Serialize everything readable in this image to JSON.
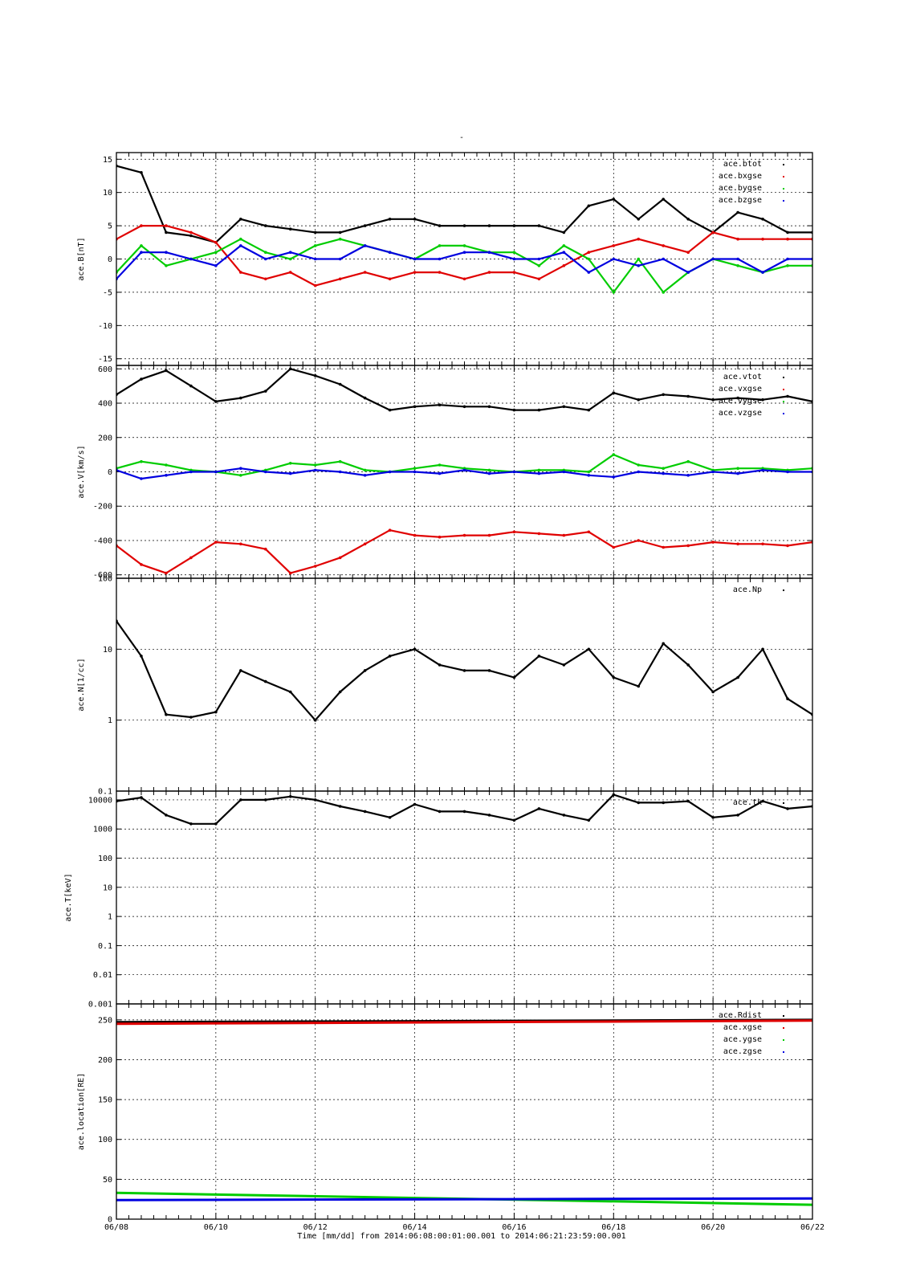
{
  "top_mark": "-",
  "xaxis": {
    "label": "Time [mm/dd]  from 2014:06:08:00:01:00.001  to  2014:06:21:23:59:00.001",
    "ticks": [
      "06/08",
      "06/10",
      "06/12",
      "06/14",
      "06/16",
      "06/18",
      "06/20",
      "06/22"
    ]
  },
  "colors": {
    "black": "#000000",
    "red": "#e00000",
    "green": "#00cc00",
    "blue": "#0000e0"
  },
  "chart_data": [
    {
      "type": "scatter",
      "ylabel": "ace.B[nT]",
      "ylim": [
        -16,
        16
      ],
      "yscale": "linear",
      "yticks": [
        15,
        10,
        5,
        0,
        -5,
        -10,
        -15
      ],
      "ytick_labels": [
        "15",
        "10",
        "5",
        "0",
        "-5",
        "-10",
        "-15"
      ],
      "xlim": [
        "06/08",
        "06/22"
      ],
      "grid": true,
      "legend_position": "top-right",
      "x": [
        "06/08",
        "06/08.5",
        "06/09",
        "06/09.5",
        "06/10",
        "06/10.5",
        "06/11",
        "06/11.5",
        "06/12",
        "06/12.5",
        "06/13",
        "06/13.5",
        "06/14",
        "06/14.5",
        "06/15",
        "06/15.5",
        "06/16",
        "06/16.5",
        "06/17",
        "06/17.5",
        "06/18",
        "06/18.5",
        "06/19",
        "06/19.5",
        "06/20",
        "06/20.5",
        "06/21",
        "06/21.5",
        "06/22"
      ],
      "series": [
        {
          "name": "ace.btot",
          "color": "#000000",
          "values": [
            14,
            13,
            4,
            3.5,
            2.5,
            6,
            5,
            4.5,
            4,
            4,
            5,
            6,
            6,
            5,
            5,
            5,
            5,
            5,
            4,
            8,
            9,
            6,
            9,
            6,
            4,
            7,
            6,
            4,
            4
          ]
        },
        {
          "name": "ace.bxgse",
          "color": "#e00000",
          "values": [
            3,
            5,
            5,
            4,
            2.5,
            -2,
            -3,
            -2,
            -4,
            -3,
            -2,
            -3,
            -2,
            -2,
            -3,
            -2,
            -2,
            -3,
            -1,
            1,
            2,
            3,
            2,
            1,
            4,
            3,
            3,
            3,
            3
          ]
        },
        {
          "name": "ace.bygse",
          "color": "#00cc00",
          "values": [
            -2,
            2,
            -1,
            0,
            1,
            3,
            1,
            0,
            2,
            3,
            2,
            1,
            0,
            2,
            2,
            1,
            1,
            -1,
            2,
            0,
            -5,
            0,
            -5,
            -2,
            0,
            -1,
            -2,
            -1,
            -1
          ]
        },
        {
          "name": "ace.bzgse",
          "color": "#0000e0",
          "values": [
            -3,
            1,
            1,
            0,
            -1,
            2,
            0,
            1,
            0,
            0,
            2,
            1,
            0,
            0,
            1,
            1,
            0,
            0,
            1,
            -2,
            0,
            -1,
            0,
            -2,
            0,
            0,
            -2,
            0,
            0
          ]
        }
      ]
    },
    {
      "type": "scatter",
      "ylabel": "ace.V[km/s]",
      "ylim": [
        -620,
        620
      ],
      "yscale": "linear",
      "yticks": [
        600,
        400,
        200,
        0,
        -200,
        -400,
        -600
      ],
      "ytick_labels": [
        "600",
        "400",
        "200",
        "0",
        "-200",
        "-400",
        "-600"
      ],
      "xlim": [
        "06/08",
        "06/22"
      ],
      "grid": true,
      "legend_position": "top-right",
      "x": [
        "06/08",
        "06/08.5",
        "06/09",
        "06/09.5",
        "06/10",
        "06/10.5",
        "06/11",
        "06/11.5",
        "06/12",
        "06/12.5",
        "06/13",
        "06/13.5",
        "06/14",
        "06/14.5",
        "06/15",
        "06/15.5",
        "06/16",
        "06/16.5",
        "06/17",
        "06/17.5",
        "06/18",
        "06/18.5",
        "06/19",
        "06/19.5",
        "06/20",
        "06/20.5",
        "06/21",
        "06/21.5",
        "06/22"
      ],
      "series": [
        {
          "name": "ace.vtot",
          "color": "#000000",
          "values": [
            450,
            540,
            590,
            500,
            410,
            430,
            470,
            600,
            560,
            510,
            430,
            360,
            380,
            390,
            380,
            380,
            360,
            360,
            380,
            360,
            460,
            420,
            450,
            440,
            420,
            430,
            420,
            440,
            410
          ]
        },
        {
          "name": "ace.vxgse",
          "color": "#e00000",
          "values": [
            -430,
            -540,
            -590,
            -500,
            -410,
            -420,
            -450,
            -590,
            -550,
            -500,
            -420,
            -340,
            -370,
            -380,
            -370,
            -370,
            -350,
            -360,
            -370,
            -350,
            -440,
            -400,
            -440,
            -430,
            -410,
            -420,
            -420,
            -430,
            -410
          ]
        },
        {
          "name": "ace.vygse",
          "color": "#00cc00",
          "values": [
            20,
            60,
            40,
            10,
            0,
            -20,
            10,
            50,
            40,
            60,
            10,
            0,
            20,
            40,
            20,
            10,
            0,
            10,
            10,
            0,
            100,
            40,
            20,
            60,
            10,
            20,
            20,
            10,
            20
          ]
        },
        {
          "name": "ace.vzgse",
          "color": "#0000e0",
          "values": [
            10,
            -40,
            -20,
            0,
            0,
            20,
            0,
            -10,
            10,
            0,
            -20,
            0,
            0,
            -10,
            10,
            -10,
            0,
            -10,
            0,
            -20,
            -30,
            0,
            -10,
            -20,
            0,
            -10,
            10,
            0,
            0
          ]
        }
      ]
    },
    {
      "type": "scatter",
      "ylabel": "ace.N[1/cc]",
      "ylim": [
        0.1,
        100
      ],
      "yscale": "log",
      "yticks": [
        100,
        10,
        1,
        0.1
      ],
      "ytick_labels": [
        "100",
        "10",
        "1",
        "0.1"
      ],
      "xlim": [
        "06/08",
        "06/22"
      ],
      "grid": true,
      "legend_position": "top-right",
      "x": [
        "06/08",
        "06/08.5",
        "06/09",
        "06/09.5",
        "06/10",
        "06/10.5",
        "06/11",
        "06/11.5",
        "06/12",
        "06/12.5",
        "06/13",
        "06/13.5",
        "06/14",
        "06/14.5",
        "06/15",
        "06/15.5",
        "06/16",
        "06/16.5",
        "06/17",
        "06/17.5",
        "06/18",
        "06/18.5",
        "06/19",
        "06/19.5",
        "06/20",
        "06/20.5",
        "06/21",
        "06/21.5",
        "06/22"
      ],
      "series": [
        {
          "name": "ace.Np",
          "color": "#000000",
          "values": [
            25,
            8,
            1.2,
            1.1,
            1.3,
            5,
            3.5,
            2.5,
            1,
            2.5,
            5,
            8,
            10,
            6,
            5,
            5,
            4,
            8,
            6,
            10,
            4,
            3,
            12,
            6,
            2.5,
            4,
            10,
            2,
            1.2
          ]
        }
      ]
    },
    {
      "type": "scatter",
      "ylabel": "ace.T[keV]",
      "ylim": [
        0.001,
        20000
      ],
      "yscale": "log",
      "yticks": [
        10000,
        1000,
        100,
        10,
        1,
        0.1,
        0.01,
        0.001
      ],
      "ytick_labels": [
        "10000",
        "1000",
        "100",
        "10",
        "1",
        "0.1",
        "0.01",
        "0.001"
      ],
      "xlim": [
        "06/08",
        "06/22"
      ],
      "grid": true,
      "legend_position": "top-right",
      "x": [
        "06/08",
        "06/08.5",
        "06/09",
        "06/09.5",
        "06/10",
        "06/10.5",
        "06/11",
        "06/11.5",
        "06/12",
        "06/12.5",
        "06/13",
        "06/13.5",
        "06/14",
        "06/14.5",
        "06/15",
        "06/15.5",
        "06/16",
        "06/16.5",
        "06/17",
        "06/17.5",
        "06/18",
        "06/18.5",
        "06/19",
        "06/19.5",
        "06/20",
        "06/20.5",
        "06/21",
        "06/21.5",
        "06/22"
      ],
      "series": [
        {
          "name": "ace.tk",
          "color": "#000000",
          "values": [
            9000,
            12000,
            3000,
            1500,
            1500,
            10000,
            10000,
            13000,
            10000,
            6000,
            4000,
            2500,
            7000,
            4000,
            4000,
            3000,
            2000,
            5000,
            3000,
            2000,
            15000,
            8000,
            8000,
            9000,
            2500,
            3000,
            9000,
            5000,
            6000
          ]
        }
      ]
    },
    {
      "type": "line",
      "ylabel": "ace.location[RE]",
      "ylim": [
        0,
        270
      ],
      "yscale": "linear",
      "yticks": [
        250,
        200,
        150,
        100,
        50,
        0
      ],
      "ytick_labels": [
        "250",
        "200",
        "150",
        "100",
        "50",
        "0"
      ],
      "xlim": [
        "06/08",
        "06/22"
      ],
      "grid": true,
      "legend_position": "top-right",
      "x": [
        "06/08",
        "06/22"
      ],
      "series": [
        {
          "name": "ace.Rdist",
          "color": "#000000",
          "values": [
            247,
            250
          ]
        },
        {
          "name": "ace.xgse",
          "color": "#e00000",
          "values": [
            245,
            249
          ]
        },
        {
          "name": "ace.ygse",
          "color": "#00cc00",
          "values": [
            33,
            18
          ]
        },
        {
          "name": "ace.zgse",
          "color": "#0000e0",
          "values": [
            24,
            26
          ]
        }
      ]
    }
  ]
}
